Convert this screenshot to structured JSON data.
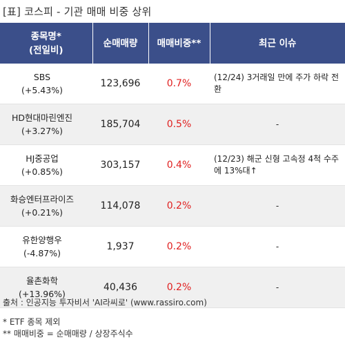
{
  "title": "[표] 코스피 - 기관 매매 비중 상위",
  "headers": {
    "name": "종목명*",
    "name_sub": "(전일비)",
    "volume": "순매매량",
    "ratio": "매매비중**",
    "issue": "최근 이슈"
  },
  "rows": [
    {
      "name": "SBS",
      "change": "(+5.43%)",
      "volume": "123,696",
      "ratio": "0.7%",
      "issue": "(12/24) 3거래일 만에 주가 하락 전환"
    },
    {
      "name": "HD현대마린엔진",
      "change": "(+3.27%)",
      "volume": "185,704",
      "ratio": "0.5%",
      "issue": "-"
    },
    {
      "name": "HJ중공업",
      "change": "(+0.85%)",
      "volume": "303,157",
      "ratio": "0.4%",
      "issue": "(12/23) 해군 신형 고속정 4척 수주에 13%대↑"
    },
    {
      "name": "화승엔터프라이즈",
      "change": "(+0.21%)",
      "volume": "114,078",
      "ratio": "0.2%",
      "issue": "-"
    },
    {
      "name": "유한양행우",
      "change": "(-4.87%)",
      "volume": "1,937",
      "ratio": "0.2%",
      "issue": "-"
    },
    {
      "name": "율촌화학",
      "change": "(+13.96%)",
      "volume": "40,436",
      "ratio": "0.2%",
      "issue": "-"
    }
  ],
  "source": "출처 : 인공지능 투자비서 'AI라씨로' (www.rassiro.com)",
  "notes": [
    "* ETF 종목 제외",
    "** 매매비중 = 순매매량 / 상장주식수"
  ],
  "colors": {
    "header_bg": "#3b4f8a",
    "ratio_text": "#e02020",
    "alt_row": "#f0f0f0"
  }
}
